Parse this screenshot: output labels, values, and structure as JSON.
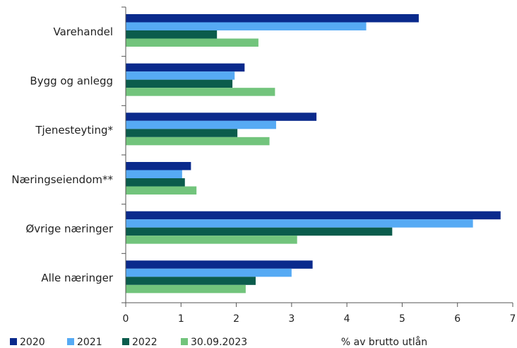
{
  "chart_data": {
    "type": "bar",
    "orientation": "horizontal",
    "title": "",
    "xlabel": "% av brutto utlån",
    "ylabel": "",
    "xlim": [
      0,
      7
    ],
    "xticks": [
      "0",
      "1",
      "2",
      "3",
      "4",
      "5",
      "6",
      "7"
    ],
    "grid": false,
    "legend_position": "bottom-left",
    "categories": [
      "Varehandel",
      "Bygg og anlegg",
      "Tjenesteyting*",
      "Næringseiendom**",
      "Øvrige næringer",
      "Alle næringer"
    ],
    "series": [
      {
        "name": "2020",
        "color": "#0a2a8c",
        "values": [
          5.3,
          2.15,
          3.45,
          1.18,
          6.78,
          3.38
        ]
      },
      {
        "name": "2021",
        "color": "#56aaf4",
        "values": [
          4.35,
          1.97,
          2.72,
          1.02,
          6.28,
          3.0
        ]
      },
      {
        "name": "2022",
        "color": "#0b5c4c",
        "values": [
          1.65,
          1.93,
          2.02,
          1.07,
          4.82,
          2.35
        ]
      },
      {
        "name": "30.09.2023",
        "color": "#72c47c",
        "values": [
          2.4,
          2.7,
          2.6,
          1.28,
          3.1,
          2.17
        ]
      }
    ]
  }
}
